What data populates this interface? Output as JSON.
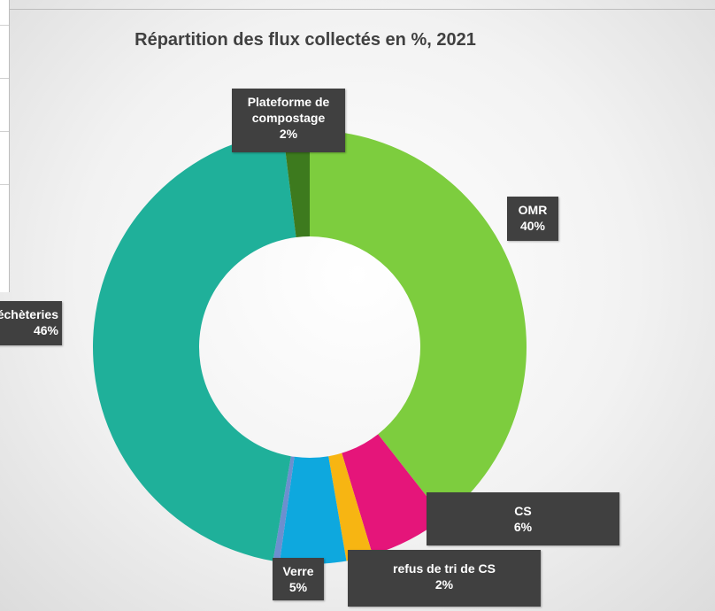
{
  "chart_data": {
    "type": "donut",
    "title": "Répartition des flux collectés en %, 2021",
    "categories": [
      "OMR",
      "CS",
      "refus de tri de CS",
      "Verre",
      null,
      "Déchèteries",
      "Plateforme de compostage"
    ],
    "values": [
      40,
      6,
      2,
      5,
      0.5,
      46,
      2
    ],
    "value_labels": [
      "40%",
      "6%",
      "2%",
      "5%",
      null,
      "46%",
      "2%"
    ],
    "colors": [
      "#7dcd3e",
      "#e5157a",
      "#f7b512",
      "#0ea8de",
      "#6d8fcf",
      "#1fb09a",
      "#3d7a1e"
    ]
  }
}
